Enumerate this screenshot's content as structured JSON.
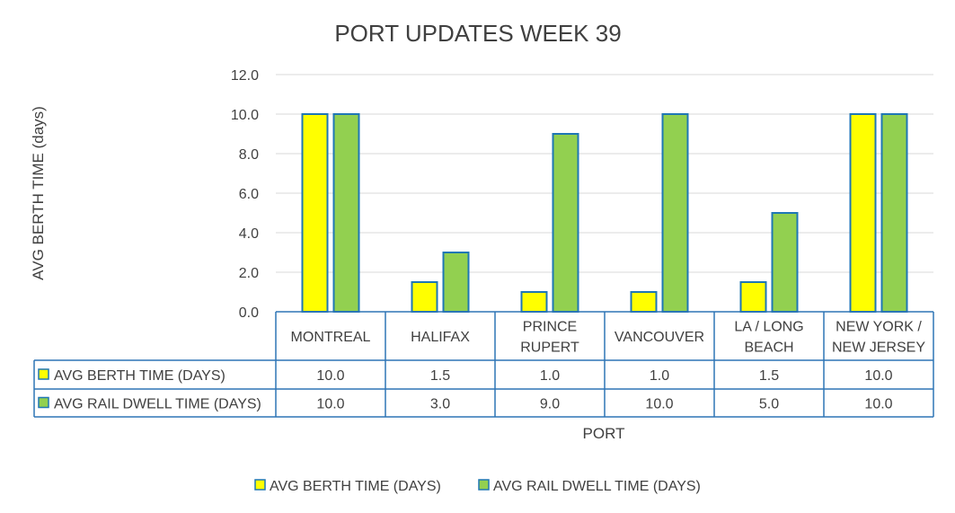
{
  "chart_data": {
    "type": "bar",
    "title": "PORT UPDATES WEEK 39",
    "xlabel": "PORT",
    "ylabel": "AVG BERTH TIME (days)",
    "ylim": [
      0,
      12
    ],
    "yticks": [
      "0.0",
      "2.0",
      "4.0",
      "6.0",
      "8.0",
      "10.0",
      "12.0"
    ],
    "categories": [
      [
        "MONTREAL"
      ],
      [
        "HALIFAX"
      ],
      [
        "PRINCE",
        "RUPERT"
      ],
      [
        "VANCOUVER"
      ],
      [
        "LA / LONG",
        "BEACH"
      ],
      [
        "NEW YORK /",
        "NEW JERSEY"
      ]
    ],
    "series": [
      {
        "name": "AVG BERTH TIME (DAYS)",
        "color": "#ffff00",
        "values": [
          10.0,
          1.5,
          1.0,
          1.0,
          1.5,
          10.0
        ],
        "labels": [
          "10.0",
          "1.5",
          "1.0",
          "1.0",
          "1.5",
          "10.0"
        ]
      },
      {
        "name": "AVG RAIL DWELL TIME (DAYS)",
        "color": "#92d050",
        "values": [
          10.0,
          3.0,
          9.0,
          10.0,
          5.0,
          10.0
        ],
        "labels": [
          "10.0",
          "3.0",
          "9.0",
          "10.0",
          "5.0",
          "10.0"
        ]
      }
    ],
    "bar_outline_color": "#1f77b4",
    "data_table": true,
    "grid": true,
    "legend": "bottom"
  }
}
